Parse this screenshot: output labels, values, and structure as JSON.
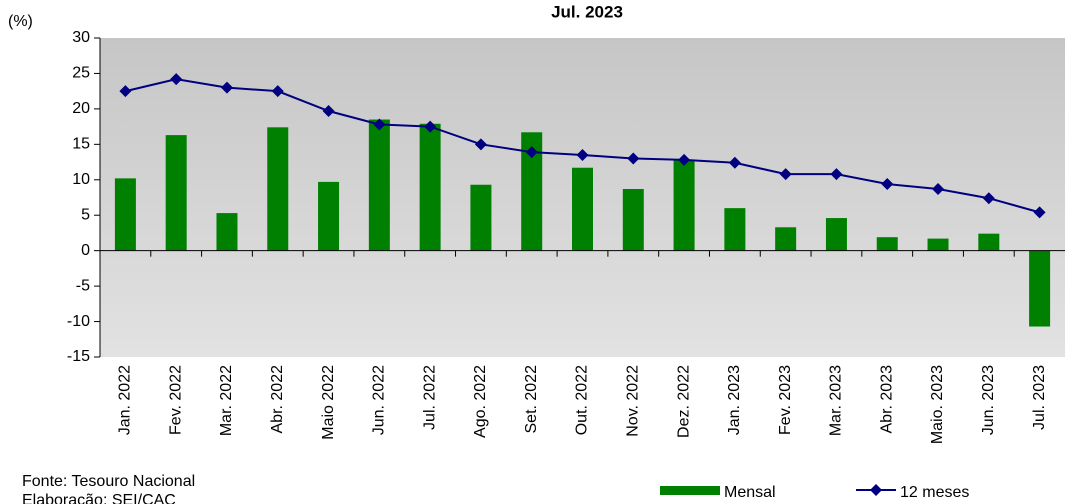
{
  "chart_data": {
    "type": "bar_line",
    "title": "Jul. 2023",
    "y_label": "(%)",
    "categories": [
      "Jan. 2022",
      "Fev. 2022",
      "Mar. 2022",
      "Abr. 2022",
      "Maio 2022",
      "Jun. 2022",
      "Jul. 2022",
      "Ago. 2022",
      "Set. 2022",
      "Out. 2022",
      "Nov. 2022",
      "Dez. 2022",
      "Jan. 2023",
      "Fev. 2023",
      "Mar. 2023",
      "Abr. 2023",
      "Maio. 2023",
      "Jun. 2023",
      "Jul. 2023"
    ],
    "series": [
      {
        "name": "Mensal",
        "type": "bar",
        "color": "#008000",
        "values": [
          10.2,
          16.3,
          5.3,
          17.4,
          9.7,
          18.5,
          17.9,
          9.3,
          16.7,
          11.7,
          8.7,
          12.8,
          6.0,
          3.3,
          4.6,
          1.9,
          1.7,
          2.4,
          -10.7
        ]
      },
      {
        "name": "12 meses",
        "type": "line",
        "color": "#000080",
        "values": [
          22.5,
          24.2,
          23.0,
          22.5,
          19.7,
          17.8,
          17.5,
          15.0,
          13.9,
          13.5,
          13.0,
          12.8,
          12.4,
          10.8,
          10.8,
          9.4,
          8.7,
          7.4,
          5.4
        ]
      }
    ],
    "ylim": [
      -15,
      30
    ],
    "yticks": [
      -15,
      -10,
      -5,
      0,
      5,
      10,
      15,
      20,
      25,
      30
    ],
    "source": "Fonte: Tesouro  Nacional",
    "credit": "Elaboração: SEI/CAC"
  }
}
